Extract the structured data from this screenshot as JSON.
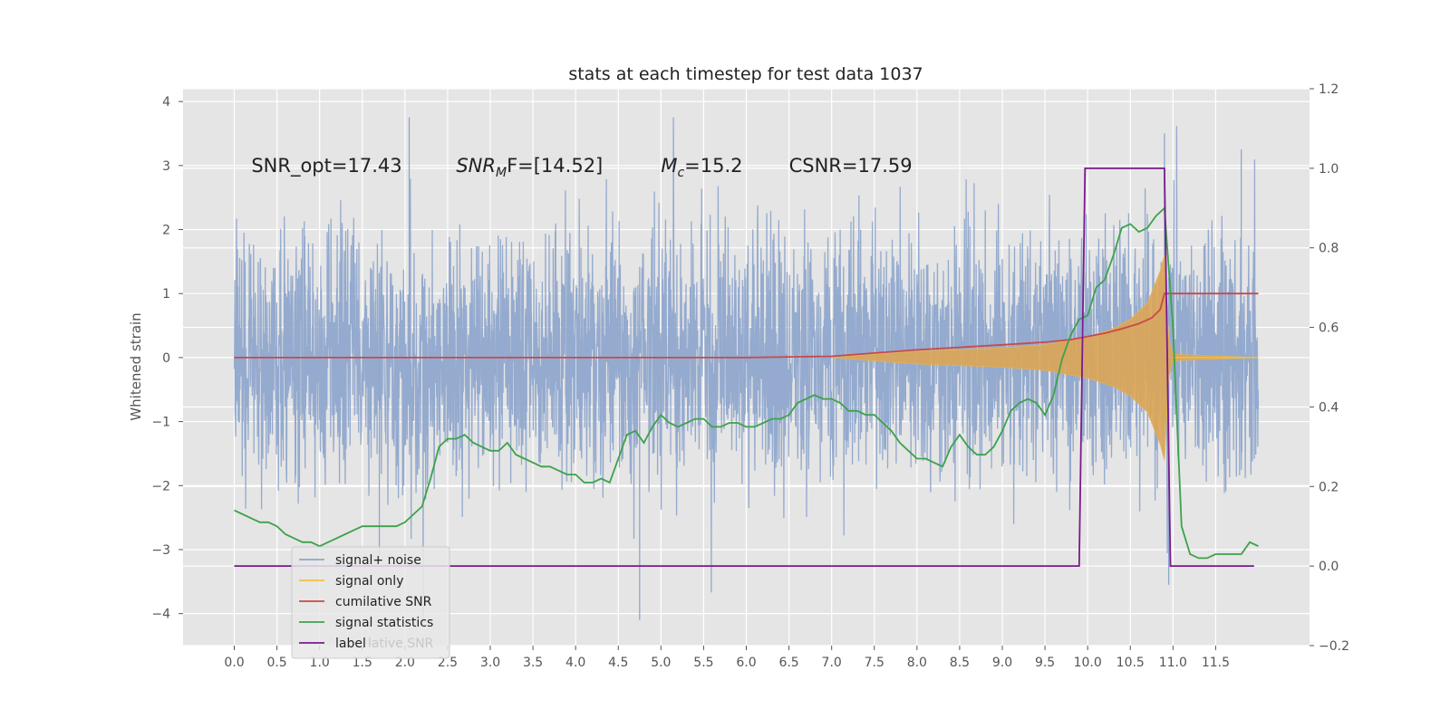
{
  "chart_data": {
    "type": "line",
    "title": "stats at each timestep for test data 1037",
    "xlabel": "",
    "ylabel": "Whitened strain",
    "y2label": "",
    "xlim": [
      -0.6,
      12.6
    ],
    "ylim": [
      -4.5,
      4.2
    ],
    "y2lim": [
      -0.2,
      1.2
    ],
    "xticks": [
      "0.0",
      "0.5",
      "1.0",
      "1.5",
      "2.0",
      "2.5",
      "3.0",
      "3.5",
      "4.0",
      "4.5",
      "5.0",
      "5.5",
      "6.0",
      "6.5",
      "7.0",
      "7.5",
      "8.0",
      "8.5",
      "9.0",
      "9.5",
      "10.0",
      "10.5",
      "11.0",
      "11.5"
    ],
    "yticks": [
      "−4",
      "−3",
      "−2",
      "−1",
      "0",
      "1",
      "2",
      "3",
      "4"
    ],
    "y2ticks": [
      "−0.2",
      "0.0",
      "0.2",
      "0.4",
      "0.6",
      "0.8",
      "1.0",
      "1.2"
    ],
    "grid": true,
    "legend_placement": "lower-left",
    "annotations": [
      {
        "text": "SNR_opt=17.43",
        "x": 0.2,
        "y": 2.9
      },
      {
        "pre": "SNR",
        "sub": "M",
        "post": "F=[14.52]",
        "x": 2.6,
        "y": 2.9
      },
      {
        "pre": "M",
        "sub": "c",
        "post": "=15.2",
        "x": 5.0,
        "y": 2.9
      },
      {
        "text": "CSNR=17.59",
        "x": 6.5,
        "y": 2.9
      }
    ],
    "legend": [
      {
        "label": "signal+ noise",
        "color": "#8fa6cc"
      },
      {
        "label": "signal only",
        "color": "#f0c040"
      },
      {
        "label": "cumilative SNR",
        "color": "#c8494b"
      },
      {
        "label": "signal statistics",
        "color": "#3ca24a"
      },
      {
        "label": "label",
        "color": "#7a1a8c"
      }
    ],
    "legend_ghost_text": "lative SNR",
    "series": [
      {
        "name": "signal+ noise",
        "axis": "left",
        "type": "noise",
        "x_range": [
          0.0,
          12.0
        ],
        "typical_amplitude": [
          -1.9,
          1.9
        ],
        "max": 3.75,
        "min": -4.1
      },
      {
        "name": "signal only",
        "axis": "left",
        "type": "chirp",
        "envelope_x": [
          7.0,
          8.0,
          9.0,
          9.5,
          10.0,
          10.3,
          10.5,
          10.7,
          10.85,
          10.9,
          10.95,
          11.0,
          12.0
        ],
        "envelope_y": [
          0.0,
          0.1,
          0.15,
          0.2,
          0.32,
          0.45,
          0.6,
          0.85,
          1.35,
          1.6,
          0.3,
          0.05,
          0.0
        ]
      },
      {
        "name": "cumilative SNR",
        "axis": "left",
        "x": [
          0.0,
          6.0,
          7.0,
          7.5,
          8.0,
          8.5,
          9.0,
          9.5,
          9.8,
          10.0,
          10.2,
          10.4,
          10.6,
          10.75,
          10.85,
          10.9,
          10.95,
          12.0
        ],
        "y": [
          0.0,
          0.0,
          0.02,
          0.07,
          0.12,
          0.16,
          0.2,
          0.24,
          0.28,
          0.33,
          0.38,
          0.45,
          0.53,
          0.62,
          0.75,
          1.0,
          1.0,
          1.0
        ]
      },
      {
        "name": "signal statistics",
        "axis": "right",
        "x": [
          0.0,
          0.1,
          0.2,
          0.3,
          0.4,
          0.5,
          0.6,
          0.7,
          0.8,
          0.9,
          1.0,
          1.1,
          1.2,
          1.3,
          1.4,
          1.5,
          1.6,
          1.7,
          1.8,
          1.9,
          2.0,
          2.1,
          2.2,
          2.3,
          2.4,
          2.5,
          2.6,
          2.7,
          2.8,
          2.9,
          3.0,
          3.1,
          3.2,
          3.3,
          3.4,
          3.5,
          3.6,
          3.7,
          3.8,
          3.9,
          4.0,
          4.1,
          4.2,
          4.3,
          4.4,
          4.5,
          4.6,
          4.7,
          4.8,
          4.9,
          5.0,
          5.1,
          5.2,
          5.3,
          5.4,
          5.5,
          5.6,
          5.7,
          5.8,
          5.9,
          6.0,
          6.1,
          6.2,
          6.3,
          6.4,
          6.5,
          6.6,
          6.7,
          6.8,
          6.9,
          7.0,
          7.1,
          7.2,
          7.3,
          7.4,
          7.5,
          7.6,
          7.7,
          7.8,
          7.9,
          8.0,
          8.1,
          8.2,
          8.3,
          8.4,
          8.5,
          8.6,
          8.7,
          8.8,
          8.9,
          9.0,
          9.1,
          9.2,
          9.3,
          9.4,
          9.5,
          9.6,
          9.7,
          9.8,
          9.9,
          10.0,
          10.1,
          10.2,
          10.3,
          10.4,
          10.5,
          10.6,
          10.7,
          10.8,
          10.9,
          11.0,
          11.1,
          11.2,
          11.3,
          11.4,
          11.5,
          11.6,
          11.7,
          11.8,
          11.9,
          12.0
        ],
        "y": [
          0.14,
          0.13,
          0.12,
          0.11,
          0.11,
          0.1,
          0.08,
          0.07,
          0.06,
          0.06,
          0.05,
          0.06,
          0.07,
          0.08,
          0.09,
          0.1,
          0.1,
          0.1,
          0.1,
          0.1,
          0.11,
          0.13,
          0.15,
          0.22,
          0.3,
          0.32,
          0.32,
          0.33,
          0.31,
          0.3,
          0.29,
          0.29,
          0.31,
          0.28,
          0.27,
          0.26,
          0.25,
          0.25,
          0.24,
          0.23,
          0.23,
          0.21,
          0.21,
          0.22,
          0.21,
          0.27,
          0.33,
          0.34,
          0.31,
          0.35,
          0.38,
          0.36,
          0.35,
          0.36,
          0.37,
          0.37,
          0.35,
          0.35,
          0.36,
          0.36,
          0.35,
          0.35,
          0.36,
          0.37,
          0.37,
          0.38,
          0.41,
          0.42,
          0.43,
          0.42,
          0.42,
          0.41,
          0.39,
          0.39,
          0.38,
          0.38,
          0.36,
          0.34,
          0.31,
          0.29,
          0.27,
          0.27,
          0.26,
          0.25,
          0.3,
          0.33,
          0.3,
          0.28,
          0.28,
          0.3,
          0.34,
          0.39,
          0.41,
          0.42,
          0.41,
          0.38,
          0.43,
          0.52,
          0.58,
          0.62,
          0.63,
          0.7,
          0.72,
          0.78,
          0.85,
          0.86,
          0.84,
          0.85,
          0.88,
          0.9,
          0.6,
          0.1,
          0.03,
          0.02,
          0.02,
          0.03,
          0.03,
          0.03,
          0.03,
          0.06,
          0.05
        ]
      },
      {
        "name": "label",
        "axis": "right",
        "x": [
          0.0,
          9.9,
          9.97,
          10.9,
          10.97,
          11.95
        ],
        "y": [
          0.0,
          0.0,
          1.0,
          1.0,
          0.0,
          0.0
        ]
      }
    ]
  }
}
